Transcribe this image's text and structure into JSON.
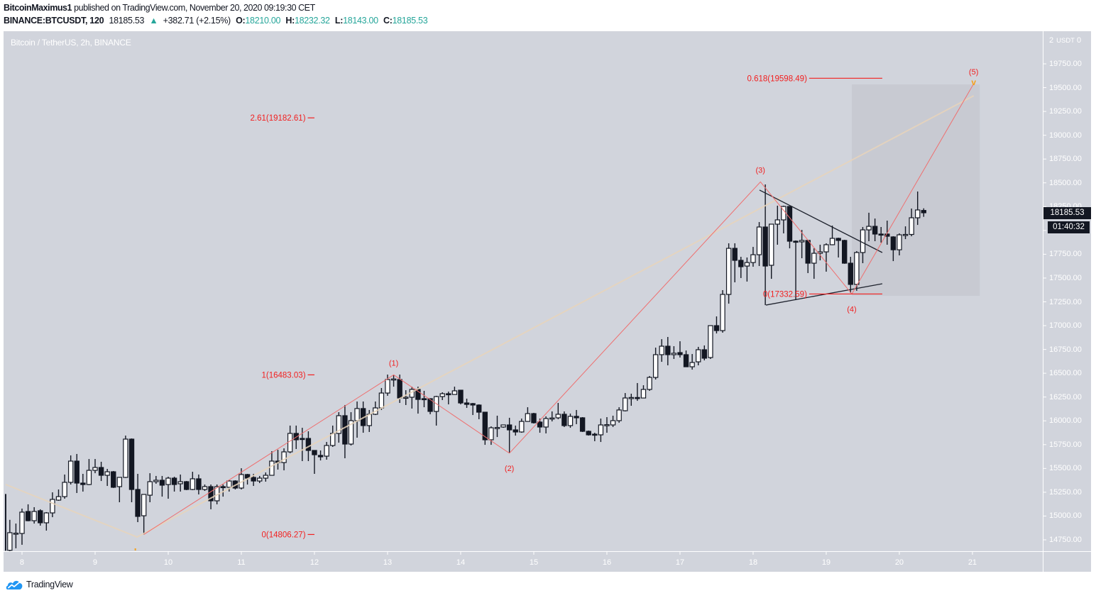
{
  "header": {
    "author": "BitcoinMaximus1",
    "published_text": "published on TradingView.com, November 20, 2020 09:19:30 CET",
    "symbol": "BINANCE:BTCUSDT, 120",
    "last_price": "18185.53",
    "change_arrow": "▲",
    "change": "+382.71 (+2.15%)",
    "ohlc": {
      "o_label": "O:",
      "o": "18210.00",
      "h_label": "H:",
      "h": "18232.32",
      "l_label": "L:",
      "l": "18143.00",
      "c_label": "C:",
      "c": "18185.53"
    }
  },
  "chart": {
    "title": "Bitcoin / TetherUS, 2h, BINANCE"
  },
  "price_axis": {
    "top_label_prefix": "2",
    "currency": "USDT",
    "top_label_suffix": "0",
    "labels": [
      "19750.00",
      "19500.00",
      "19250.00",
      "19000.00",
      "18750.00",
      "18500.00",
      "18250.00",
      "18000.00",
      "17750.00",
      "17500.00",
      "17250.00",
      "17000.00",
      "16750.00",
      "16500.00",
      "16250.00",
      "16000.00",
      "15750.00",
      "15500.00",
      "15250.00",
      "15000.00",
      "14750.00"
    ],
    "current_price": "18185.53",
    "countdown": "01:40:32"
  },
  "time_axis": {
    "labels": [
      "8",
      "9",
      "10",
      "11",
      "12",
      "13",
      "14",
      "15",
      "16",
      "17",
      "18",
      "19",
      "20",
      "21"
    ]
  },
  "footer": {
    "brand": "TradingView"
  },
  "colors": {
    "chart_background": "#d1d4dc",
    "axis_text": "#ffffff",
    "up_body": "#ffffff",
    "down_body": "#131722",
    "candle_outline": "#131722",
    "wave_line": "#ef6f6f",
    "fib": "#f21f1f",
    "trend_guide": "#e8d3bb",
    "triangle": "#1e222d",
    "highlight_box": "#c8cad2",
    "marker": "#f5a11c",
    "teal": "#26a69a",
    "badge_bg": "#131722",
    "brand_blue": "#2196f3"
  },
  "chart_data": {
    "type": "candlestick",
    "title": "Bitcoin / TetherUS, 2h, BINANCE",
    "symbol": "BINANCE:BTCUSDT",
    "interval": "2h",
    "xlabel": "",
    "ylabel": "USDT",
    "ylim": [
      14650,
      20000
    ],
    "x_tick_labels": [
      "8",
      "9",
      "10",
      "11",
      "12",
      "13",
      "14",
      "15",
      "16",
      "17",
      "18",
      "19",
      "20",
      "21"
    ],
    "first_index": -1,
    "candle_fields": [
      "open",
      "high",
      "low",
      "close"
    ],
    "candles": [
      [
        15227,
        15230,
        14635,
        14640
      ],
      [
        14640,
        14960,
        14630,
        14825
      ],
      [
        14817,
        14921,
        14661,
        14820
      ],
      [
        14817,
        15078,
        14698,
        15041
      ],
      [
        15048,
        15123,
        14945,
        14951
      ],
      [
        14951,
        15093,
        14921,
        15048
      ],
      [
        15056,
        15071,
        14899,
        14929
      ],
      [
        14929,
        15041,
        14847,
        15033
      ],
      [
        15033,
        15249,
        14988,
        15175
      ],
      [
        15167,
        15279,
        15160,
        15204
      ],
      [
        15204,
        15436,
        15182,
        15354
      ],
      [
        15354,
        15637,
        15331,
        15577
      ],
      [
        15577,
        15652,
        15242,
        15346
      ],
      [
        15346,
        15443,
        15257,
        15331
      ],
      [
        15331,
        15599,
        15325,
        15480
      ],
      [
        15480,
        15599,
        15450,
        15510
      ],
      [
        15510,
        15570,
        15368,
        15428
      ],
      [
        15428,
        15495,
        15316,
        15465
      ],
      [
        15465,
        15473,
        15295,
        15302
      ],
      [
        15309,
        15406,
        15145,
        15406
      ],
      [
        15406,
        15845,
        15400,
        15808
      ],
      [
        15808,
        15815,
        15145,
        15279
      ],
      [
        15279,
        15443,
        14936,
        14996
      ],
      [
        15003,
        15230,
        14806,
        15227
      ],
      [
        15219,
        15450,
        15145,
        15361
      ],
      [
        15361,
        15421,
        15339,
        15376
      ],
      [
        15376,
        15421,
        15204,
        15324
      ],
      [
        15331,
        15413,
        15182,
        15398
      ],
      [
        15398,
        15413,
        15257,
        15331
      ],
      [
        15339,
        15436,
        15257,
        15361
      ],
      [
        15361,
        15368,
        15272,
        15279
      ],
      [
        15279,
        15465,
        15272,
        15391
      ],
      [
        15391,
        15436,
        15227,
        15279
      ],
      [
        15279,
        15331,
        15264,
        15309
      ],
      [
        15309,
        15331,
        15071,
        15160
      ],
      [
        15160,
        15331,
        15123,
        15309
      ],
      [
        15309,
        15331,
        15204,
        15302
      ],
      [
        15302,
        15376,
        15257,
        15368
      ],
      [
        15368,
        15376,
        15279,
        15294
      ],
      [
        15294,
        15502,
        15279,
        15436
      ],
      [
        15436,
        15443,
        15331,
        15398
      ],
      [
        15406,
        15443,
        15316,
        15368
      ],
      [
        15368,
        15421,
        15346,
        15398
      ],
      [
        15398,
        15458,
        15361,
        15428
      ],
      [
        15428,
        15681,
        15428,
        15577
      ],
      [
        15577,
        15696,
        15488,
        15562
      ],
      [
        15562,
        15711,
        15480,
        15674
      ],
      [
        15674,
        15950,
        15660,
        15868
      ],
      [
        15868,
        15950,
        15704,
        15801
      ],
      [
        15815,
        15927,
        15577,
        15810
      ],
      [
        15815,
        15890,
        15577,
        15689
      ],
      [
        15689,
        15689,
        15443,
        15644
      ],
      [
        15637,
        15689,
        15584,
        15622
      ],
      [
        15629,
        15778,
        15592,
        15741
      ],
      [
        15741,
        15950,
        15726,
        15868
      ],
      [
        15868,
        16091,
        15771,
        16054
      ],
      [
        16054,
        16166,
        15607,
        15756
      ],
      [
        15756,
        16091,
        15741,
        16002
      ],
      [
        16002,
        16203,
        15823,
        16129
      ],
      [
        16129,
        16203,
        15875,
        15950
      ],
      [
        15950,
        16114,
        15883,
        16069
      ],
      [
        16069,
        16203,
        16061,
        16136
      ],
      [
        16136,
        16345,
        16114,
        16292
      ],
      [
        16292,
        16486,
        16263,
        16434
      ],
      [
        16434,
        16479,
        16359,
        16440
      ],
      [
        16434,
        16486,
        16188,
        16240
      ],
      [
        16240,
        16322,
        16166,
        16248
      ],
      [
        16248,
        16359,
        16129,
        16330
      ],
      [
        16330,
        16359,
        16076,
        16225
      ],
      [
        16233,
        16315,
        16143,
        16225
      ],
      [
        16233,
        16233,
        16069,
        16099
      ],
      [
        16099,
        16263,
        15950,
        16255
      ],
      [
        16255,
        16300,
        16218,
        16285
      ],
      [
        16285,
        16307,
        16173,
        16277
      ],
      [
        16277,
        16359,
        16277,
        16315
      ],
      [
        16322,
        16322,
        16173,
        16188
      ],
      [
        16188,
        16233,
        16136,
        16173
      ],
      [
        16181,
        16188,
        16061,
        16166
      ],
      [
        16166,
        16173,
        16017,
        16091
      ],
      [
        16091,
        16091,
        15748,
        15801
      ],
      [
        15801,
        15942,
        15748,
        15927
      ],
      [
        15927,
        16054,
        15830,
        15930
      ],
      [
        15935,
        15960,
        15927,
        15957
      ],
      [
        15957,
        16032,
        15666,
        15905
      ],
      [
        15905,
        15950,
        15845,
        15883
      ],
      [
        15883,
        16024,
        15875,
        15994
      ],
      [
        15994,
        16143,
        15990,
        16076
      ],
      [
        16076,
        16084,
        15972,
        15980
      ],
      [
        15987,
        16024,
        15875,
        15935
      ],
      [
        15935,
        16047,
        15868,
        16024
      ],
      [
        16024,
        16099,
        15994,
        16030
      ],
      [
        16032,
        16188,
        16017,
        16069
      ],
      [
        16069,
        16099,
        15935,
        15950
      ],
      [
        15950,
        16076,
        15927,
        16047
      ],
      [
        16047,
        16114,
        15965,
        16032
      ],
      [
        16032,
        16039,
        15883,
        15890
      ],
      [
        15890,
        15898,
        15845,
        15853
      ],
      [
        15860,
        15875,
        15786,
        15853
      ],
      [
        15853,
        16024,
        15778,
        15957
      ],
      [
        15957,
        16039,
        15875,
        15960
      ],
      [
        15957,
        16054,
        15935,
        16002
      ],
      [
        16002,
        16143,
        15980,
        16114
      ],
      [
        16106,
        16292,
        16099,
        16240
      ],
      [
        16240,
        16285,
        16158,
        16245
      ],
      [
        16245,
        16397,
        16210,
        16240
      ],
      [
        16240,
        16374,
        16240,
        16330
      ],
      [
        16330,
        16471,
        16315,
        16456
      ],
      [
        16456,
        16769,
        16434,
        16695
      ],
      [
        16695,
        16858,
        16620,
        16784
      ],
      [
        16784,
        16881,
        16583,
        16695
      ],
      [
        16695,
        16784,
        16650,
        16710
      ],
      [
        16717,
        16836,
        16665,
        16695
      ],
      [
        16695,
        16739,
        16568,
        16568
      ],
      [
        16568,
        16702,
        16538,
        16613
      ],
      [
        16620,
        16777,
        16583,
        16747
      ],
      [
        16747,
        16792,
        16635,
        16658
      ],
      [
        16665,
        17000,
        16650,
        17000
      ],
      [
        17000,
        17097,
        16918,
        16948
      ],
      [
        16948,
        17373,
        16926,
        17328
      ],
      [
        17328,
        17865,
        17231,
        17812
      ],
      [
        17812,
        17865,
        17455,
        17686
      ],
      [
        17686,
        17723,
        17500,
        17619
      ],
      [
        17626,
        17716,
        17463,
        17663
      ],
      [
        17663,
        17827,
        17619,
        17745
      ],
      [
        17745,
        18088,
        17626,
        18036
      ],
      [
        18036,
        18483,
        17216,
        17626
      ],
      [
        17634,
        18066,
        17492,
        18066
      ],
      [
        18066,
        18260,
        17850,
        18111
      ],
      [
        18111,
        18260,
        17969,
        18252
      ],
      [
        18252,
        18252,
        17812,
        17887
      ],
      [
        17887,
        17895,
        17268,
        17880
      ],
      [
        17880,
        18006,
        17708,
        17895
      ],
      [
        17895,
        17895,
        17552,
        17656
      ],
      [
        17656,
        17812,
        17492,
        17760
      ],
      [
        17760,
        17850,
        17686,
        17775
      ],
      [
        17775,
        17865,
        17567,
        17850
      ],
      [
        17850,
        18051,
        17845,
        17917
      ],
      [
        17917,
        17924,
        17716,
        17895
      ],
      [
        17895,
        17902,
        17650,
        17656
      ],
      [
        17656,
        17723,
        17343,
        17433
      ],
      [
        17433,
        17783,
        17366,
        17768
      ],
      [
        17768,
        18036,
        17656,
        18006
      ],
      [
        18006,
        18186,
        17887,
        18043
      ],
      [
        18043,
        18125,
        17887,
        17962
      ],
      [
        17962,
        18036,
        17872,
        17958
      ],
      [
        17962,
        18103,
        17850,
        17939
      ],
      [
        17932,
        17939,
        17678,
        17797
      ],
      [
        17797,
        17969,
        17738,
        17954
      ],
      [
        17954,
        18043,
        17909,
        17958
      ],
      [
        17958,
        18230,
        17939,
        18133
      ],
      [
        18133,
        18409,
        18058,
        18215
      ],
      [
        18210,
        18232.32,
        18143,
        18185.53
      ]
    ],
    "elliott_waves": [
      {
        "label": "",
        "index": 22,
        "price": 14806.27,
        "pos": "none"
      },
      {
        "label": "(1)",
        "index": 63,
        "price": 16483.03,
        "pos": "above"
      },
      {
        "label": "(2)",
        "index": 82,
        "price": 15660,
        "pos": "below"
      },
      {
        "label": "(3)",
        "index": 123.2,
        "price": 18510,
        "pos": "above"
      },
      {
        "label": "(4)",
        "index": 138.2,
        "price": 17332.59,
        "pos": "below"
      },
      {
        "label": "(5)",
        "index": 158.2,
        "price": 19541,
        "pos": "above"
      }
    ],
    "fib_levels": [
      {
        "label": "2.61(19182.61)",
        "ratio": 2.61,
        "price": 19182.61,
        "line_start_index": 48.9,
        "line_end_index": 50.0
      },
      {
        "label": "1(16483.03)",
        "ratio": 1,
        "price": 16483.03,
        "line_start_index": 48.9,
        "line_end_index": 50.0
      },
      {
        "label": "0(14806.27)",
        "ratio": 0,
        "price": 14806.27,
        "line_start_index": 48.9,
        "line_end_index": 50.0
      },
      {
        "label": "0.618(19598.49)",
        "ratio": 0.618,
        "price": 19598.49,
        "line_start_index": 131.2,
        "line_end_index": 143.2
      },
      {
        "label": "0(17332.59)",
        "ratio": 0,
        "price": 17332.59,
        "line_start_index": 131.2,
        "line_end_index": 143.2
      }
    ],
    "trend_guide": [
      [
        -0.68,
        15331
      ],
      [
        20.9,
        14780
      ],
      [
        158.2,
        19415
      ]
    ],
    "triangle": {
      "upper": [
        [
          123.05,
          18424
        ],
        [
          143.2,
          17768
        ]
      ],
      "lower": [
        [
          124.1,
          17216
        ],
        [
          143.2,
          17440
        ]
      ]
    },
    "highlight_box": {
      "from_index": 138.2,
      "to_index": 159.2,
      "top_price": 19534,
      "bottom_price": 17313
    },
    "target_marker": {
      "text": "v",
      "index": 158.2,
      "price": 19556
    },
    "time_marker": {
      "index": 20.6
    },
    "last_price": 18185.53,
    "grid": false,
    "legend": "none"
  }
}
